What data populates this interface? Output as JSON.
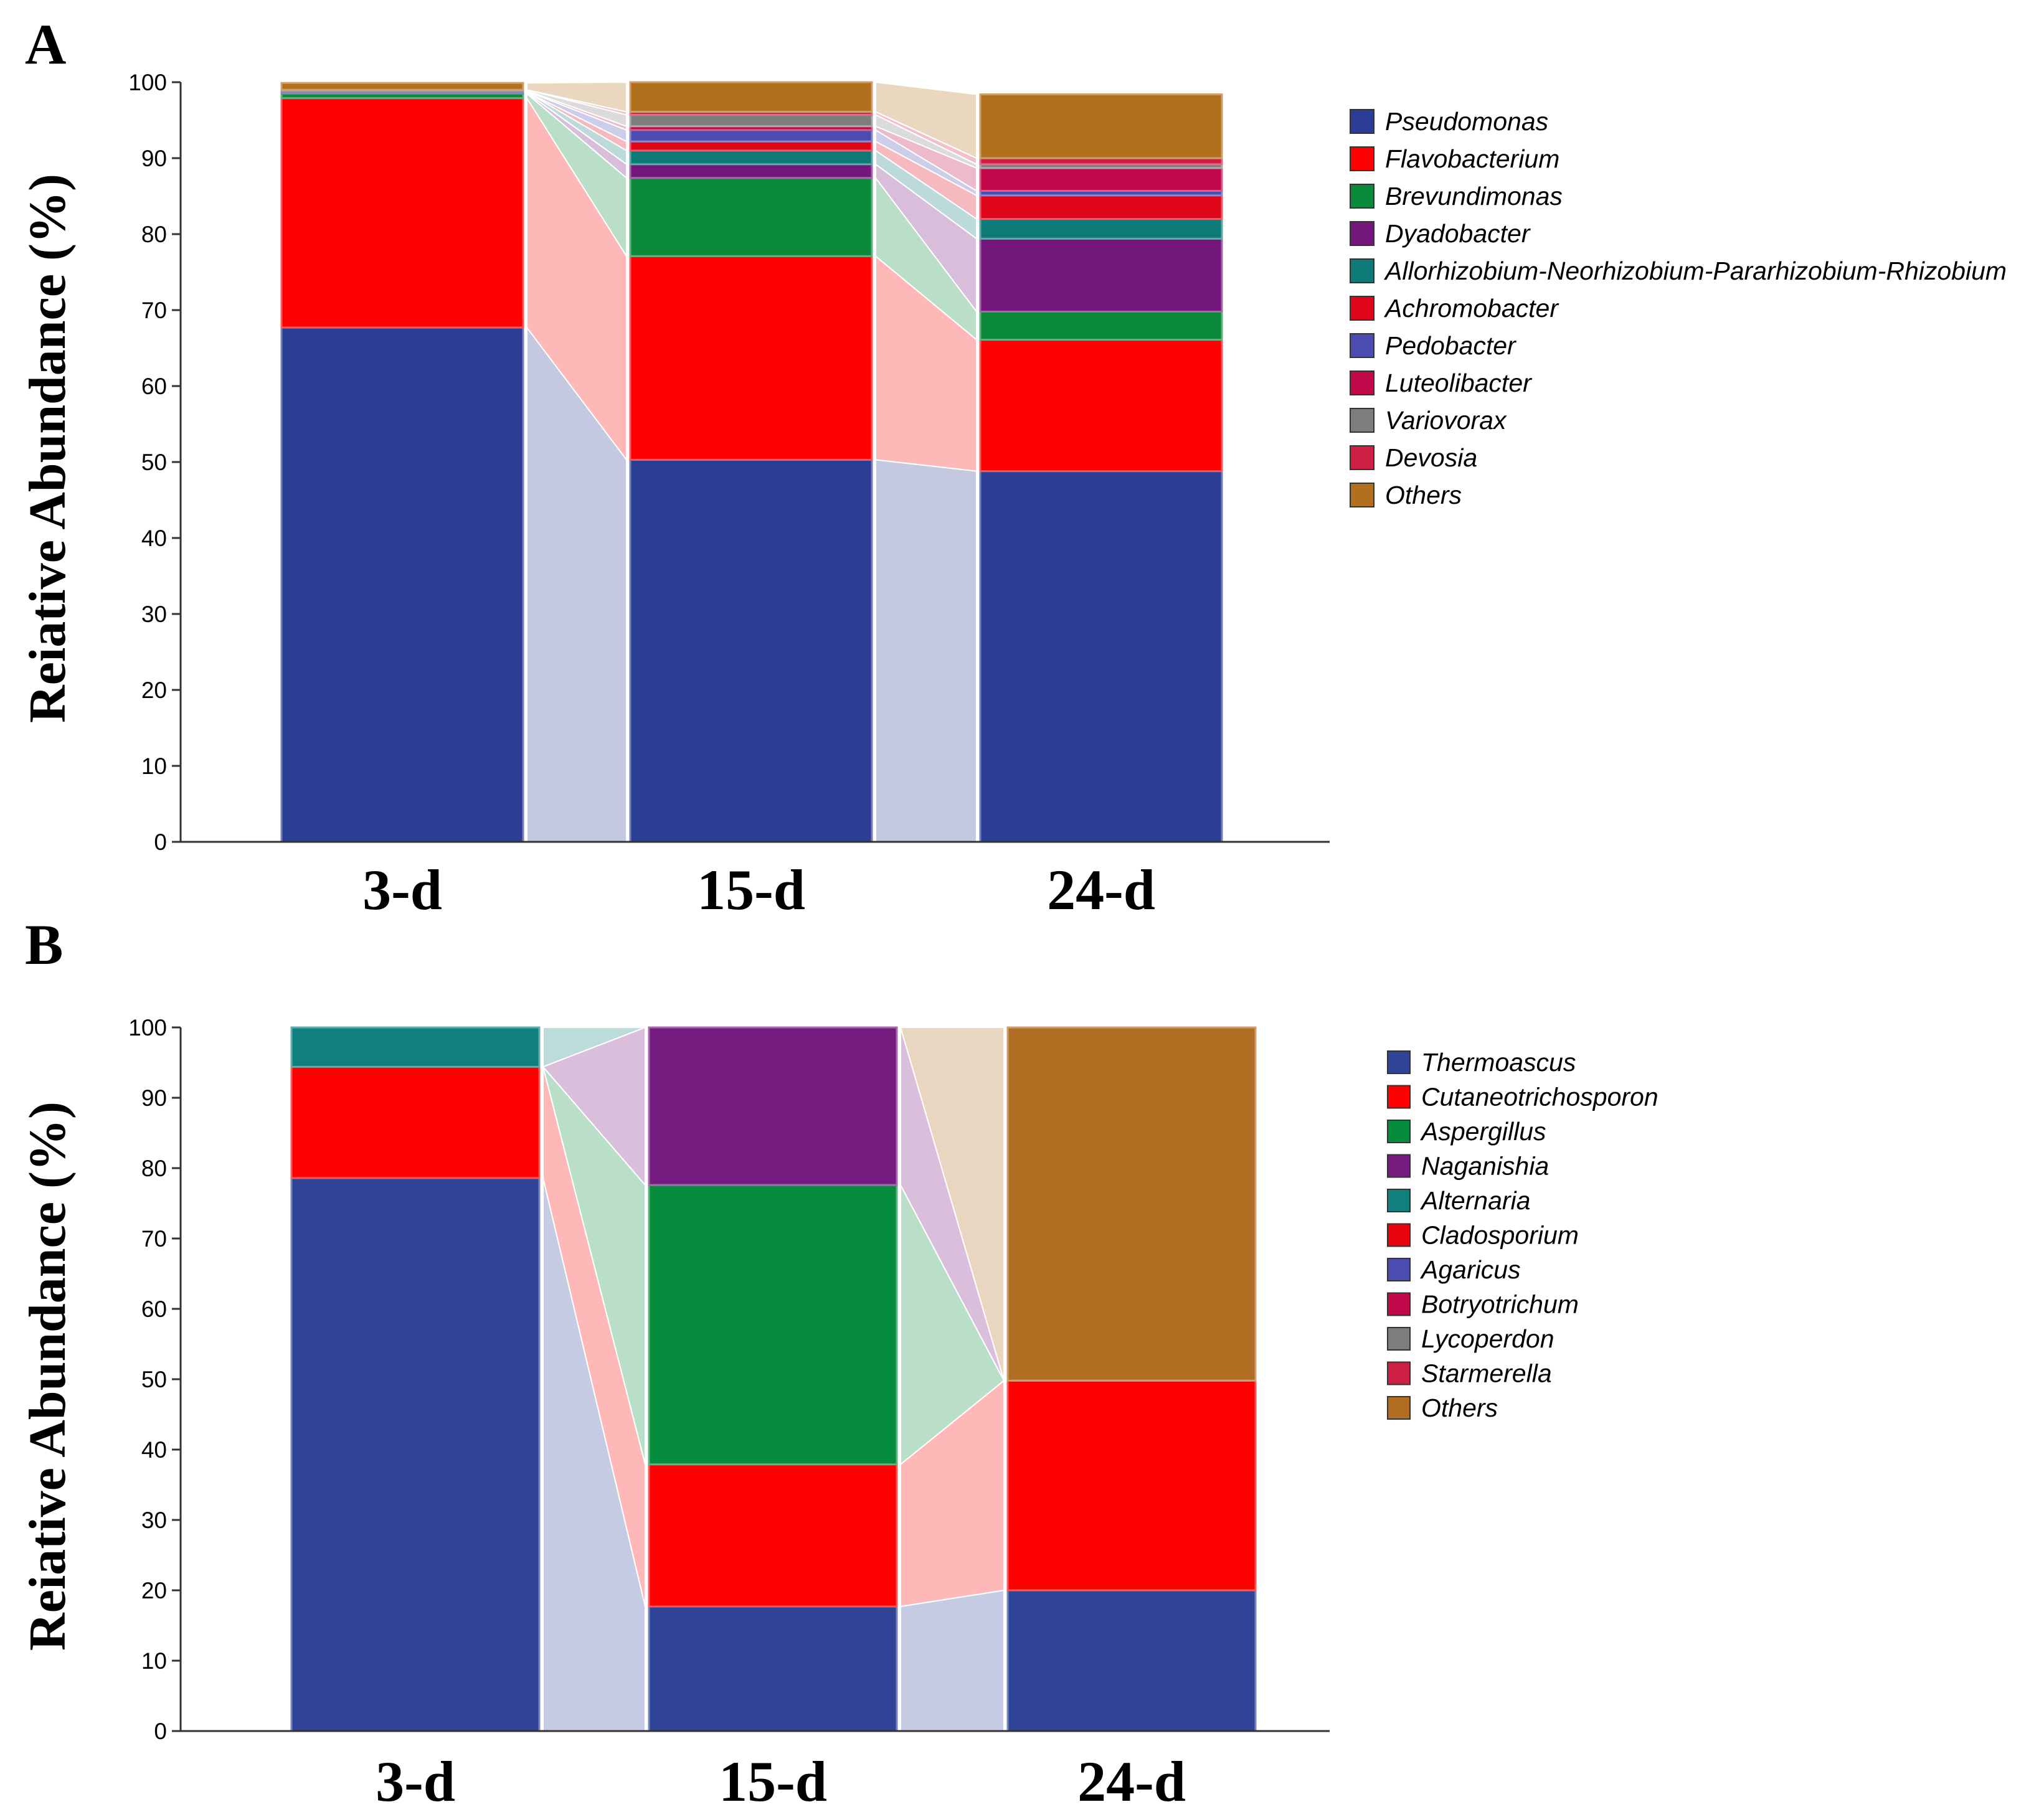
{
  "colors": {
    "Pseudomonas": "#2b3d94",
    "Flavobacterium": "#fe0000",
    "Brevundimonas": "#0a8a3a",
    "Dyadobacter": "#74177d",
    "Allorhizobium": "#0e7a78",
    "Achromobacter": "#e0061a",
    "Pedobacter": "#4a4cb0",
    "Luteolibacter": "#c0084a",
    "Variovorax": "#7d7d7d",
    "Devosia": "#d01f44",
    "Others": "#b26f1d",
    "Thermoascus": "#2f4496",
    "Cutaneotrichosporon": "#fe0000",
    "Aspergillus": "#058c3c",
    "Naganishia": "#761b80",
    "Alternaria": "#10807e",
    "Cladosporium": "#e8040c",
    "Agaricus": "#4a4cb0",
    "Botryotrichum": "#c0084a",
    "Lycoperdon": "#7d7d7d",
    "Starmerella": "#d01f44",
    "Others_fungi": "#b16d22"
  },
  "chart_data": [
    {
      "panel": "A",
      "type": "bar",
      "stacked": true,
      "title": "",
      "xlabel": "",
      "ylabel": "Reiative Abundance (%)",
      "ylim": [
        0,
        100
      ],
      "yticks": [
        0,
        10,
        20,
        30,
        40,
        50,
        60,
        70,
        80,
        90,
        100
      ],
      "categories": [
        "3-d",
        "15-d",
        "24-d"
      ],
      "legend_position": "right",
      "series": [
        {
          "name": "Pseudomonas",
          "color_key": "Pseudomonas",
          "values": [
            67.7,
            50.3,
            48.8
          ]
        },
        {
          "name": "Flavobacterium",
          "color_key": "Flavobacterium",
          "values": [
            30.2,
            26.8,
            17.3
          ]
        },
        {
          "name": "Brevundimonas",
          "color_key": "Brevundimonas",
          "values": [
            0.6,
            10.3,
            3.7
          ]
        },
        {
          "name": "Dyadobacter",
          "color_key": "Dyadobacter",
          "values": [
            0.1,
            1.8,
            9.6
          ]
        },
        {
          "name": "Allorhizobium-Neorhizobium-Pararhizobium-Rhizobium",
          "color_key": "Allorhizobium",
          "values": [
            0.1,
            1.8,
            2.6
          ]
        },
        {
          "name": "Achromobacter",
          "color_key": "Achromobacter",
          "values": [
            0.0,
            1.2,
            3.1
          ]
        },
        {
          "name": "Pedobacter",
          "color_key": "Pedobacter",
          "values": [
            0.1,
            1.5,
            0.6
          ]
        },
        {
          "name": "Luteolibacter",
          "color_key": "Luteolibacter",
          "values": [
            0.1,
            0.5,
            3.0
          ]
        },
        {
          "name": "Variovorax",
          "color_key": "Variovorax",
          "values": [
            0.1,
            1.5,
            0.5
          ]
        },
        {
          "name": "Devosia",
          "color_key": "Devosia",
          "values": [
            0.0,
            0.4,
            0.8
          ]
        },
        {
          "name": "Others",
          "color_key": "Others",
          "values": [
            0.9,
            3.9,
            8.4
          ]
        }
      ]
    },
    {
      "panel": "B",
      "type": "bar",
      "stacked": true,
      "title": "",
      "xlabel": "",
      "ylabel": "Reiative Abundance (%)",
      "ylim": [
        0,
        100
      ],
      "yticks": [
        0,
        10,
        20,
        30,
        40,
        50,
        60,
        70,
        80,
        90,
        100
      ],
      "categories": [
        "3-d",
        "15-d",
        "24-d"
      ],
      "legend_position": "right",
      "series": [
        {
          "name": "Thermoascus",
          "color_key": "Thermoascus",
          "values": [
            78.6,
            17.7,
            20.0
          ]
        },
        {
          "name": "Cutaneotrichosporon",
          "color_key": "Cutaneotrichosporon",
          "values": [
            15.8,
            20.2,
            29.8
          ]
        },
        {
          "name": "Aspergillus",
          "color_key": "Aspergillus",
          "values": [
            0.0,
            39.7,
            0.0
          ]
        },
        {
          "name": "Naganishia",
          "color_key": "Naganishia",
          "values": [
            0.0,
            22.4,
            0.0
          ]
        },
        {
          "name": "Alternaria",
          "color_key": "Alternaria",
          "values": [
            5.6,
            0.0,
            0.0
          ]
        },
        {
          "name": "Cladosporium",
          "color_key": "Cladosporium",
          "values": [
            0.0,
            0.0,
            0.0
          ]
        },
        {
          "name": "Agaricus",
          "color_key": "Agaricus",
          "values": [
            0.0,
            0.0,
            0.0
          ]
        },
        {
          "name": "Botryotrichum",
          "color_key": "Botryotrichum",
          "values": [
            0.0,
            0.0,
            0.0
          ]
        },
        {
          "name": "Lycoperdon",
          "color_key": "Lycoperdon",
          "values": [
            0.0,
            0.0,
            0.0
          ]
        },
        {
          "name": "Starmerella",
          "color_key": "Starmerella",
          "values": [
            0.0,
            0.0,
            0.0
          ]
        },
        {
          "name": "Others",
          "color_key": "Others_fungi",
          "values": [
            0.0,
            0.0,
            50.2
          ]
        }
      ]
    }
  ]
}
